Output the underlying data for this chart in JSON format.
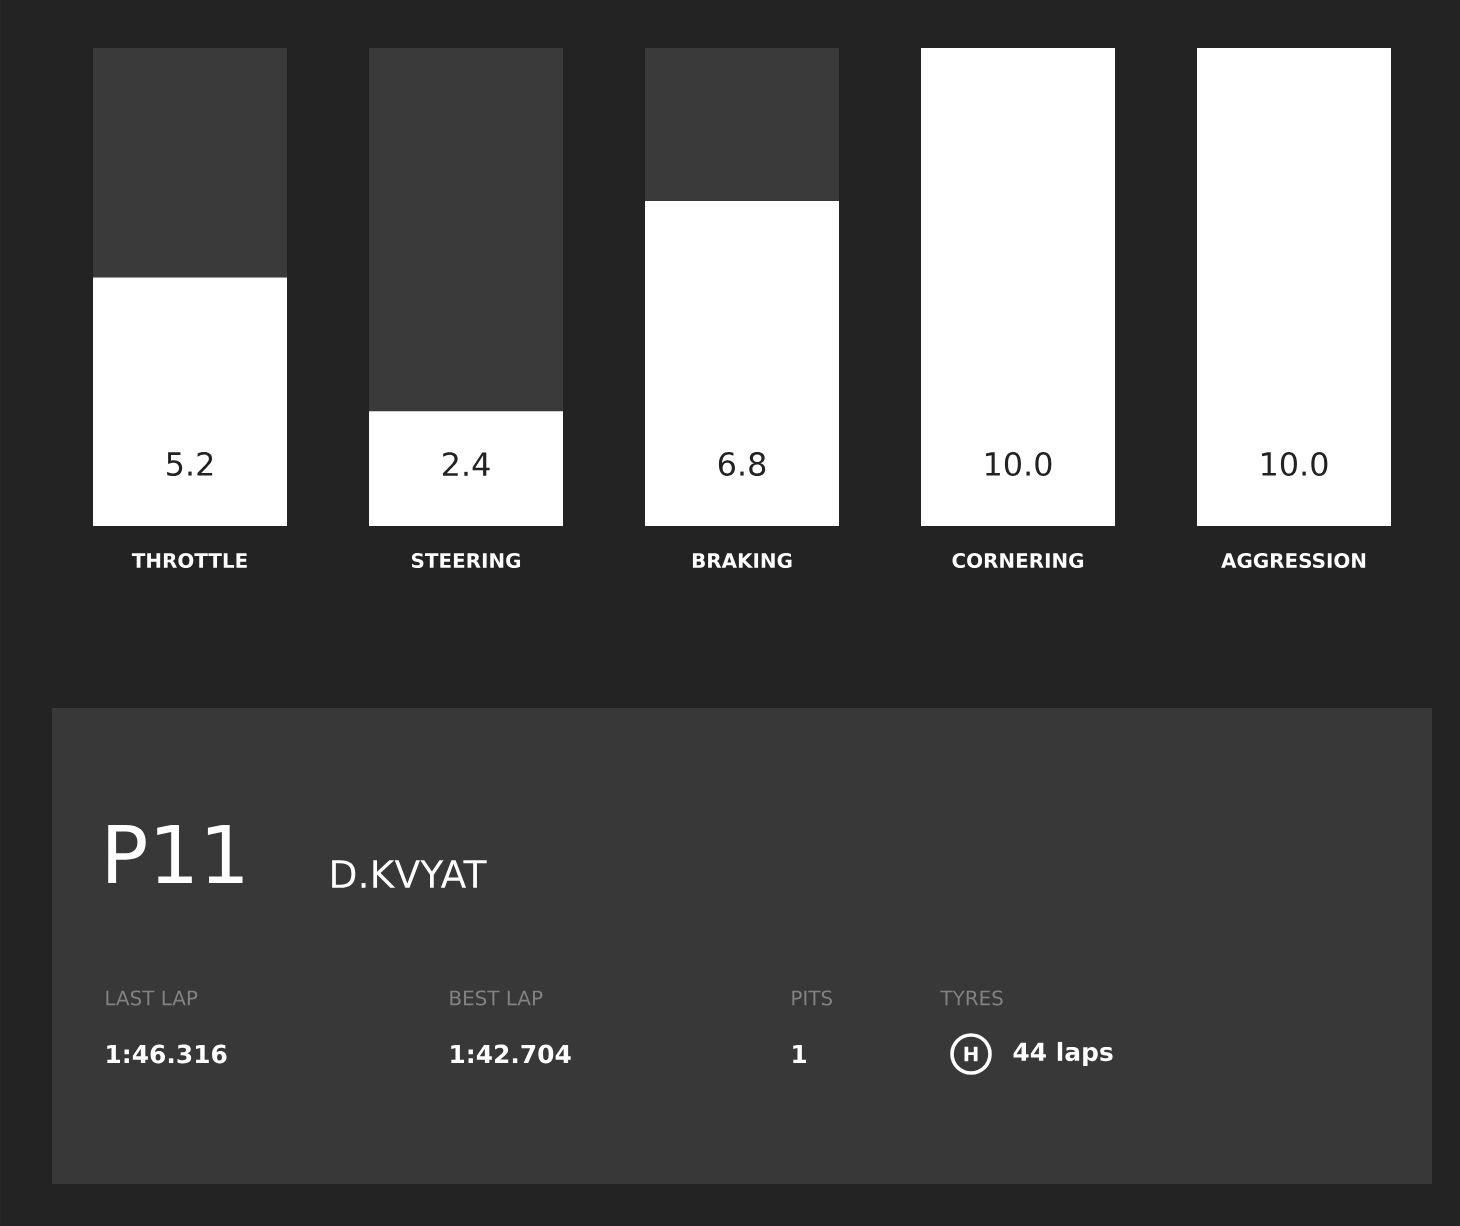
{
  "chart_data": [
    {
      "type": "bar",
      "categories": [
        "THROTTLE",
        "STEERING",
        "BRAKING",
        "CORNERING",
        "AGGRESSION"
      ],
      "ylim": [
        0,
        10
      ],
      "tick_labels": "x",
      "stacked": true,
      "series": [
        {
          "color": "#ffffff",
          "values": [
            5.2,
            2.4,
            6.8,
            10.0,
            10.0
          ],
          "value_labels": [
            "5.2",
            "2.4",
            "6.8",
            "10.0",
            "10.0"
          ]
        },
        {
          "color": "#3a3a3a",
          "values": [
            4.8,
            7.6,
            3.2,
            0,
            0
          ]
        }
      ]
    },
    {
      "type": "other",
      "annotations": [
        "P11",
        "D.KVYAT",
        "LAST LAP",
        "1:46.316",
        "BEST LAP",
        "1:42.704",
        "PITS",
        "1",
        "TYRES",
        "H",
        "44 laps"
      ]
    }
  ]
}
